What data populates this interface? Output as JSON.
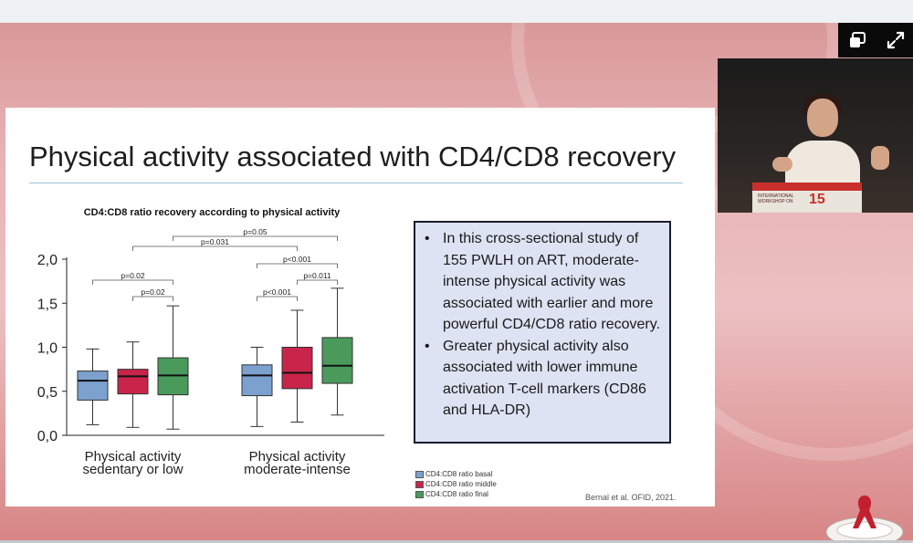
{
  "slide": {
    "title": "Physical activity associated with CD4/CD8 recovery",
    "bullets": [
      "In this cross-sectional study of 155 PWLH on ART, moderate-intense physical activity was associated with earlier and more powerful CD4/CD8 ratio recovery.",
      "Greater physical activity also associated with lower immune activation T-cell markers (CD86 and HLA-DR)"
    ],
    "citation": "Bernal et al.  OFID, 2021."
  },
  "webcam": {
    "podium_text": "INTERNATIONAL\nWORKSHOP ON",
    "podium_logo": "15"
  },
  "chart_data": {
    "type": "box",
    "title": "CD4:CD8 ratio recovery according to physical activity",
    "xlabel": "",
    "ylabel": "",
    "ylim": [
      0,
      2.0
    ],
    "yticks": [
      "0,0",
      "0,5",
      "1,0",
      "1,5",
      "2,0"
    ],
    "ytick_values": [
      0,
      0.5,
      1.0,
      1.5,
      2.0
    ],
    "categories": [
      "Physical activity\nsedentary or low",
      "Physical activity\nmoderate-intense"
    ],
    "series": [
      {
        "name": "CD4:CD8 ratio basal",
        "color": "#7da1cf",
        "boxes": [
          {
            "min": 0.12,
            "q1": 0.4,
            "median": 0.62,
            "q3": 0.73,
            "max": 0.98
          },
          {
            "min": 0.1,
            "q1": 0.45,
            "median": 0.68,
            "q3": 0.8,
            "max": 1.0
          }
        ]
      },
      {
        "name": "CD4:CD8 ratio middle",
        "color": "#c9244a",
        "boxes": [
          {
            "min": 0.09,
            "q1": 0.47,
            "median": 0.67,
            "q3": 0.75,
            "max": 1.06
          },
          {
            "min": 0.15,
            "q1": 0.53,
            "median": 0.71,
            "q3": 1.0,
            "max": 1.42
          }
        ]
      },
      {
        "name": "CD4:CD8 ratio final",
        "color": "#4a9a5c",
        "boxes": [
          {
            "min": 0.07,
            "q1": 0.46,
            "median": 0.68,
            "q3": 0.88,
            "max": 1.47
          },
          {
            "min": 0.23,
            "q1": 0.59,
            "median": 0.79,
            "q3": 1.11,
            "max": 1.67
          }
        ]
      }
    ],
    "annotations": [
      {
        "text": "p=0.05",
        "from": [
          0,
          2
        ],
        "to": [
          1,
          2
        ],
        "level": 5
      },
      {
        "text": "p=0.031",
        "from": [
          0,
          1
        ],
        "to": [
          1,
          1
        ],
        "level": 4
      },
      {
        "text": "p<0.001",
        "from": [
          1,
          0
        ],
        "to": [
          1,
          2
        ],
        "level": 3
      },
      {
        "text": "p=0.011",
        "from": [
          1,
          1
        ],
        "to": [
          1,
          2
        ],
        "level": 2
      },
      {
        "text": "p<0.001",
        "from": [
          1,
          0
        ],
        "to": [
          1,
          1
        ],
        "level": 1
      },
      {
        "text": "p=0.02",
        "from": [
          0,
          0
        ],
        "to": [
          0,
          2
        ],
        "level": 2
      },
      {
        "text": "p=0.02",
        "from": [
          0,
          1
        ],
        "to": [
          0,
          2
        ],
        "level": 1
      }
    ],
    "legend_position": "bottom-right"
  }
}
